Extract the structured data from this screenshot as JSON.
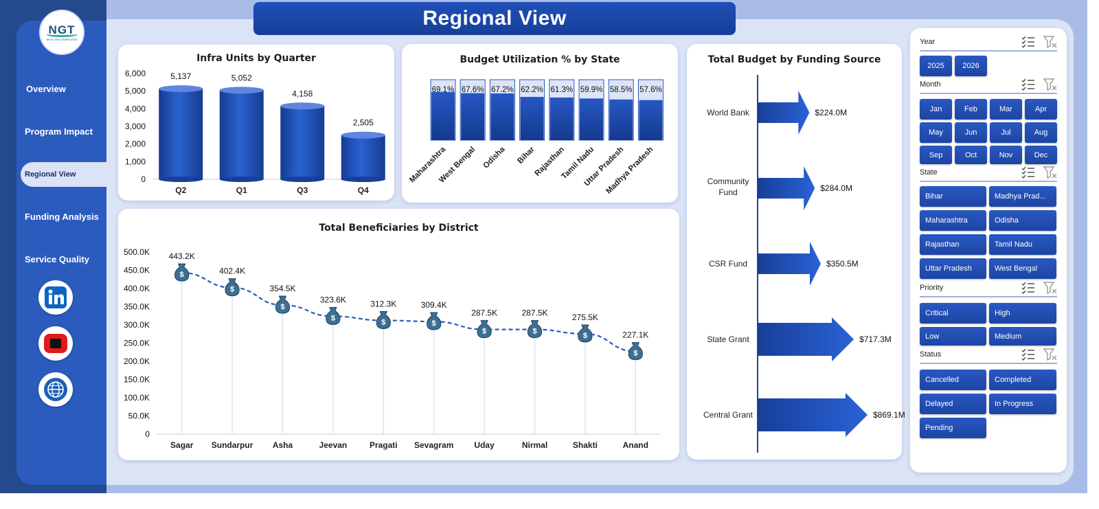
{
  "page": {
    "title": "Regional View"
  },
  "logo": {
    "text": "NGT",
    "sub": "NEXT GEN TEMPLATES"
  },
  "nav": {
    "items": [
      "Overview",
      "Program Impact",
      "Regional View",
      "Funding Analysis",
      "Service Quality"
    ],
    "active": "Regional View"
  },
  "social": [
    "linkedin-icon",
    "youtube-icon",
    "globe-icon"
  ],
  "colors": {
    "primary": "#1c45a4",
    "sidebar": "#2b5bbd",
    "background": "#dbe3f6",
    "line": "#2b5bbd"
  },
  "slicers": {
    "year": {
      "label": "Year",
      "options": [
        "2025",
        "2026"
      ]
    },
    "month": {
      "label": "Month",
      "options": [
        "Jan",
        "Feb",
        "Mar",
        "Apr",
        "May",
        "Jun",
        "Jul",
        "Aug",
        "Sep",
        "Oct",
        "Nov",
        "Dec"
      ]
    },
    "state": {
      "label": "State",
      "options": [
        "Bihar",
        "Madhya Prad...",
        "Maharashtra",
        "Odisha",
        "Rajasthan",
        "Tamil Nadu",
        "Uttar Pradesh",
        "West Bengal"
      ]
    },
    "priority": {
      "label": "Priority",
      "options": [
        "Critical",
        "High",
        "Low",
        "Medium"
      ]
    },
    "status": {
      "label": "Status",
      "options": [
        "Cancelled",
        "Completed",
        "Delayed",
        "In Progress",
        "Pending"
      ]
    }
  },
  "chart_data": [
    {
      "type": "bar",
      "title": "Infra Units by Quarter",
      "categories": [
        "Q2",
        "Q1",
        "Q3",
        "Q4"
      ],
      "values": [
        5137,
        5052,
        4158,
        2505
      ],
      "labels": [
        "5,137",
        "5,052",
        "4,158",
        "2,505"
      ],
      "yticks": [
        "0",
        "1,000",
        "2,000",
        "3,000",
        "4,000",
        "5,000",
        "6,000"
      ],
      "ylim": [
        0,
        6000
      ]
    },
    {
      "type": "bar",
      "title": "Budget Utilization % by State",
      "categories": [
        "Maharashtra",
        "West Bengal",
        "Odisha",
        "Bihar",
        "Rajasthan",
        "Tamil Nadu",
        "Uttar Pradesh",
        "Madhya Pradesh"
      ],
      "values": [
        69.1,
        67.6,
        67.2,
        62.2,
        61.3,
        59.9,
        58.5,
        57.6
      ],
      "labels": [
        "69.1%",
        "67.6%",
        "67.2%",
        "62.2%",
        "61.3%",
        "59.9%",
        "58.5%",
        "57.6%"
      ],
      "ylim": [
        0,
        100
      ]
    },
    {
      "type": "line",
      "title": "Total Beneficiaries by District",
      "categories": [
        "Sagar",
        "Sundarpur",
        "Asha",
        "Jeevan",
        "Pragati",
        "Sevagram",
        "Uday",
        "Nirmal",
        "Shakti",
        "Anand"
      ],
      "values": [
        443200,
        402400,
        354500,
        323600,
        312300,
        309400,
        287500,
        287500,
        275500,
        227100
      ],
      "labels": [
        "443.2K",
        "402.4K",
        "354.5K",
        "323.6K",
        "312.3K",
        "309.4K",
        "287.5K",
        "287.5K",
        "275.5K",
        "227.1K"
      ],
      "yticks": [
        "0",
        "50.0K",
        "100.0K",
        "150.0K",
        "200.0K",
        "250.0K",
        "300.0K",
        "350.0K",
        "400.0K",
        "450.0K",
        "500.0K"
      ],
      "ylim": [
        0,
        500000
      ]
    },
    {
      "type": "bar",
      "title": "Total Budget by Funding Source",
      "categories": [
        "World Bank",
        "Community Fund",
        "CSR Fund",
        "State Grant",
        "Central Grant"
      ],
      "values": [
        224.0,
        284.0,
        350.5,
        717.3,
        869.1
      ],
      "labels": [
        "$224.0M",
        "$284.0M",
        "$350.5M",
        "$717.3M",
        "$869.1M"
      ],
      "unit": "M"
    }
  ]
}
